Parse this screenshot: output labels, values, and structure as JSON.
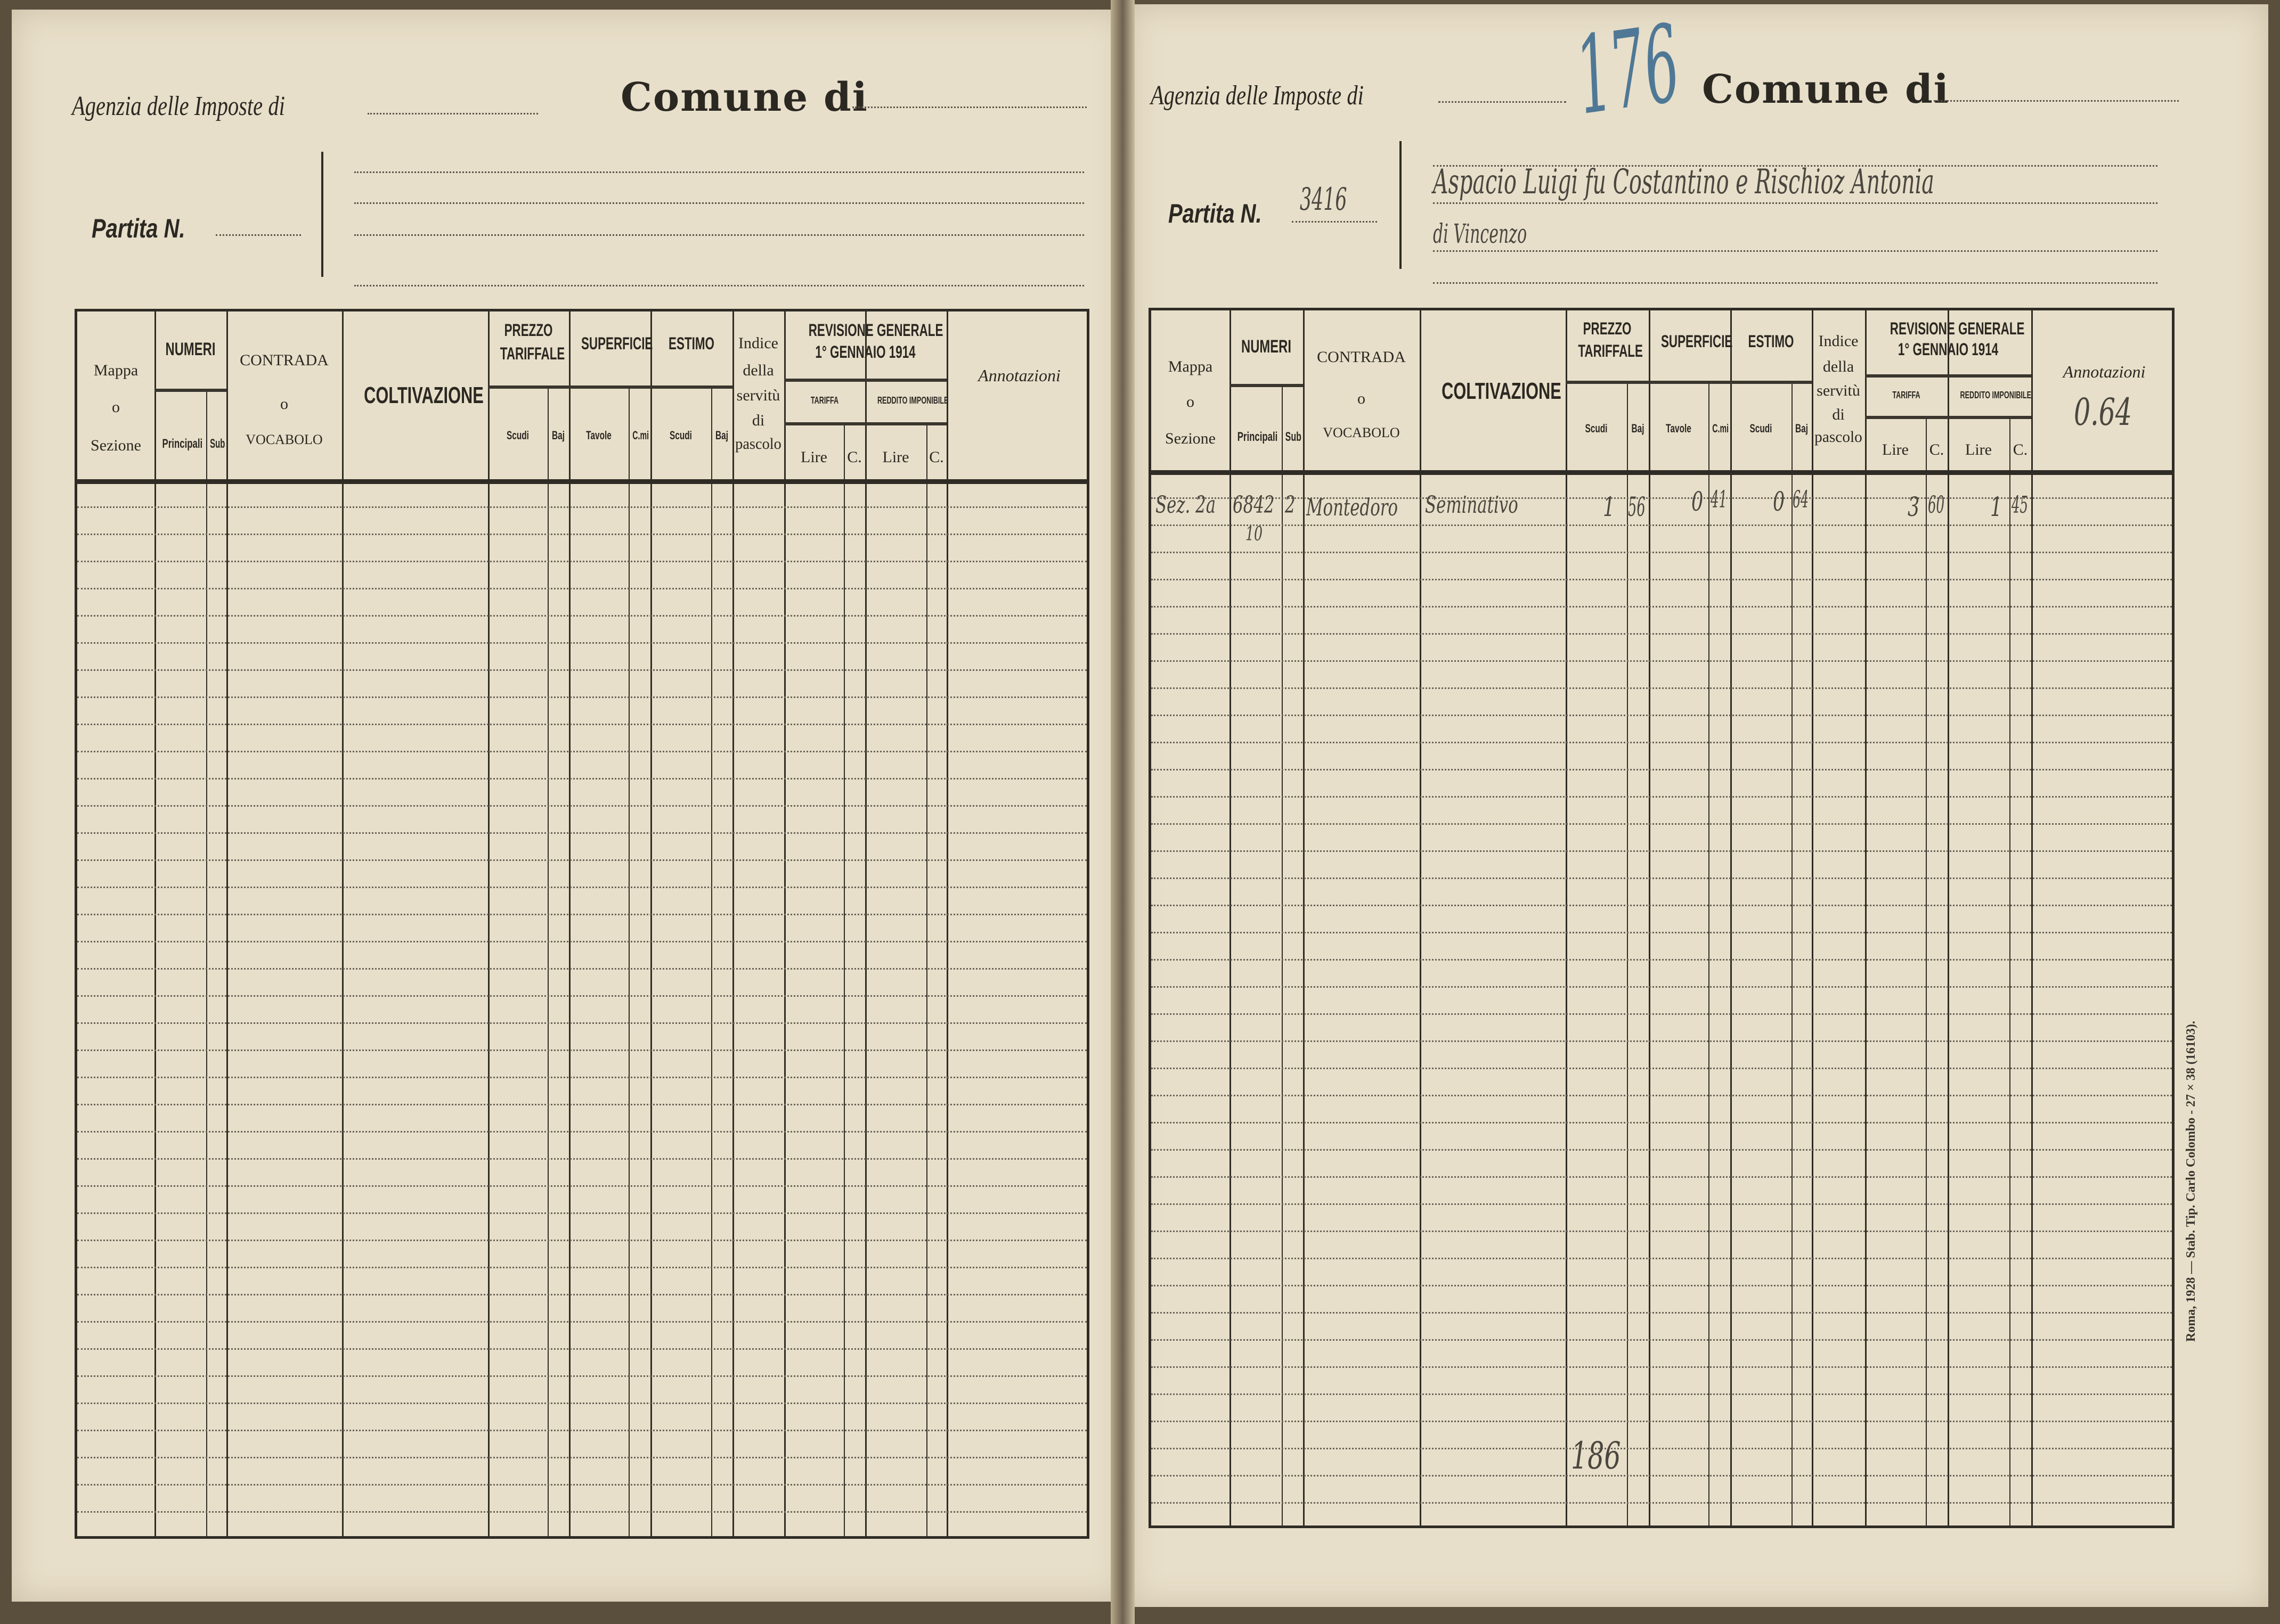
{
  "form": {
    "agenzia_label": "Agenzia delle Imposte di",
    "comune_label": "Comune di",
    "partita_label": "Partita N."
  },
  "table_header": {
    "mappa": "Mappa",
    "o": "o",
    "sezione": "Sezione",
    "numeri": "NUMERI",
    "principali": "Principali",
    "sub": "Sub",
    "contrada": "CONTRADA",
    "vocabolo": "VOCABOLO",
    "coltivazione": "COLTIVAZIONE",
    "prezzo": "PREZZO",
    "tariffale": "TARIFFALE",
    "scudi": "Scudi",
    "baj": "Baj",
    "superficie": "SUPERFICIE",
    "tavole": "Tavole",
    "cmi": "C.mi",
    "estimo": "ESTIMO",
    "indice": "Indice",
    "della": "della",
    "servitu": "servitù",
    "di": "di",
    "pascolo": "pascolo",
    "revisione": "REVISIONE GENERALE",
    "gennaio": "1° GENNAIO 1914",
    "tariffa": "TARIFFA",
    "reddito": "REDDITO IMPONIBILE",
    "lire": "Lire",
    "c": "C.",
    "annotazioni": "Annotazioni"
  },
  "right_page": {
    "stamp_number": "176",
    "partita_number": "3416",
    "owner_line1": "Aspacio Luigi fu Costantino e Rischioz Antonia",
    "owner_line2": "di Vincenzo",
    "annotazioni_value": "0.64",
    "rows": [
      {
        "sezione": "Sez. 2a",
        "principali": "6842",
        "principali_note": "10",
        "sub": "2",
        "contrada": "Montedoro",
        "coltivazione": "Seminativo",
        "prezzo_scudi": "1",
        "prezzo_baj": "56",
        "superficie_tavole": "0",
        "superficie_cmi": "41",
        "estimo_scudi": "0",
        "estimo_baj": "64",
        "tariffa_lire": "3",
        "tariffa_c": "60",
        "reddito_lire": "1",
        "reddito_c": "45"
      }
    ],
    "page_total": "186",
    "imprint": "Roma, 1928 — Stab. Tip. Carlo Colombo - 27 × 38 (16103)."
  },
  "colors": {
    "paper": "#e8dfca",
    "ink": "#2f2b25",
    "blue_pencil": "#4f7896"
  }
}
